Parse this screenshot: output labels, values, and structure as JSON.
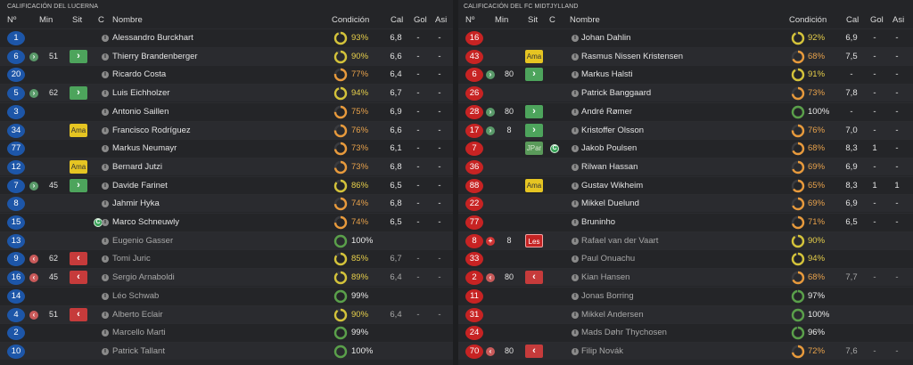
{
  "left": {
    "title": "CALIFICACIÓN DEL LUCERNA",
    "headers": {
      "num": "Nº",
      "min": "Min",
      "sit": "Sit",
      "c": "C",
      "name": "Nombre",
      "cond": "Condición",
      "cal": "Cal",
      "gol": "Gol",
      "asi": "Asi"
    },
    "rows": [
      {
        "num": "1",
        "name": "Alessandro Burckhart",
        "pct": "93%",
        "cal": "6,8",
        "gol": "-",
        "asi": "-",
        "sub": false,
        "in": "",
        "min": "",
        "sit": "",
        "cap": false
      },
      {
        "num": "6",
        "name": "Thierry Brandenberger",
        "pct": "90%",
        "cal": "6,6",
        "gol": "-",
        "asi": "-",
        "sub": false,
        "in": "on",
        "min": "51",
        "sit": "on",
        "cap": false
      },
      {
        "num": "20",
        "name": "Ricardo Costa",
        "pct": "77%",
        "cal": "6,4",
        "gol": "-",
        "asi": "-",
        "sub": false,
        "in": "",
        "min": "",
        "sit": "",
        "cap": false
      },
      {
        "num": "5",
        "name": "Luis Eichholzer",
        "pct": "94%",
        "cal": "6,7",
        "gol": "-",
        "asi": "-",
        "sub": false,
        "in": "on",
        "min": "62",
        "sit": "on",
        "cap": false
      },
      {
        "num": "3",
        "name": "Antonio Saillen",
        "pct": "75%",
        "cal": "6,9",
        "gol": "-",
        "asi": "-",
        "sub": false,
        "in": "",
        "min": "",
        "sit": "",
        "cap": false
      },
      {
        "num": "34",
        "name": "Francisco Rodríguez",
        "pct": "76%",
        "cal": "6,6",
        "gol": "-",
        "asi": "-",
        "sub": false,
        "in": "",
        "min": "",
        "sit": "ama",
        "cap": false
      },
      {
        "num": "77",
        "name": "Markus Neumayr",
        "pct": "73%",
        "cal": "6,1",
        "gol": "-",
        "asi": "-",
        "sub": false,
        "in": "",
        "min": "",
        "sit": "",
        "cap": false
      },
      {
        "num": "12",
        "name": "Bernard Jutzi",
        "pct": "73%",
        "cal": "6,8",
        "gol": "-",
        "asi": "-",
        "sub": false,
        "in": "",
        "min": "",
        "sit": "ama",
        "cap": false
      },
      {
        "num": "7",
        "name": "Davide Farinet",
        "pct": "86%",
        "cal": "6,5",
        "gol": "-",
        "asi": "-",
        "sub": false,
        "in": "on",
        "min": "45",
        "sit": "on",
        "cap": false
      },
      {
        "num": "8",
        "name": "Jahmir Hyka",
        "pct": "74%",
        "cal": "6,8",
        "gol": "-",
        "asi": "-",
        "sub": false,
        "in": "",
        "min": "",
        "sit": "",
        "cap": false
      },
      {
        "num": "15",
        "name": "Marco Schneuwly",
        "pct": "74%",
        "cal": "6,5",
        "gol": "-",
        "asi": "-",
        "sub": false,
        "in": "",
        "min": "",
        "sit": "",
        "cap": true
      },
      {
        "num": "13",
        "name": "Eugenio Gasser",
        "pct": "100%",
        "cal": "",
        "gol": "",
        "asi": "",
        "sub": true,
        "in": "",
        "min": "",
        "sit": "",
        "cap": false
      },
      {
        "num": "9",
        "name": "Tomi Juric",
        "pct": "85%",
        "cal": "6,7",
        "gol": "-",
        "asi": "-",
        "sub": true,
        "in": "off",
        "min": "62",
        "sit": "off",
        "cap": false
      },
      {
        "num": "16",
        "name": "Sergio Arnaboldi",
        "pct": "89%",
        "cal": "6,4",
        "gol": "-",
        "asi": "-",
        "sub": true,
        "in": "off",
        "min": "45",
        "sit": "off",
        "cap": false
      },
      {
        "num": "14",
        "name": "Léo Schwab",
        "pct": "99%",
        "cal": "",
        "gol": "",
        "asi": "",
        "sub": true,
        "in": "",
        "min": "",
        "sit": "",
        "cap": false
      },
      {
        "num": "4",
        "name": "Alberto Eclair",
        "pct": "90%",
        "cal": "6,4",
        "gol": "-",
        "asi": "-",
        "sub": true,
        "in": "off",
        "min": "51",
        "sit": "off",
        "cap": false
      },
      {
        "num": "2",
        "name": "Marcello Marti",
        "pct": "99%",
        "cal": "",
        "gol": "",
        "asi": "",
        "sub": true,
        "in": "",
        "min": "",
        "sit": "",
        "cap": false
      },
      {
        "num": "10",
        "name": "Patrick Tallant",
        "pct": "100%",
        "cal": "",
        "gol": "",
        "asi": "",
        "sub": true,
        "in": "",
        "min": "",
        "sit": "",
        "cap": false
      }
    ]
  },
  "right": {
    "title": "CALIFICACIÓN DEL FC MIDTJYLLAND",
    "headers": {
      "num": "Nº",
      "min": "Min",
      "sit": "Sit",
      "c": "C",
      "name": "Nombre",
      "cond": "Condición",
      "cal": "Cal",
      "gol": "Gol",
      "asi": "Asi"
    },
    "rows": [
      {
        "num": "16",
        "name": "Johan Dahlin",
        "pct": "92%",
        "cal": "6,9",
        "gol": "-",
        "asi": "-",
        "sub": false,
        "in": "",
        "min": "",
        "sit": "",
        "cap": false
      },
      {
        "num": "43",
        "name": "Rasmus Nissen Kristensen",
        "pct": "68%",
        "cal": "7,5",
        "gol": "-",
        "asi": "-",
        "sub": false,
        "in": "",
        "min": "",
        "sit": "ama",
        "cap": false
      },
      {
        "num": "6",
        "name": "Markus Halsti",
        "pct": "91%",
        "cal": "-",
        "gol": "-",
        "asi": "-",
        "sub": false,
        "in": "on",
        "min": "80",
        "sit": "on",
        "cap": false
      },
      {
        "num": "26",
        "name": "Patrick Banggaard",
        "pct": "73%",
        "cal": "7,8",
        "gol": "-",
        "asi": "-",
        "sub": false,
        "in": "",
        "min": "",
        "sit": "",
        "cap": false
      },
      {
        "num": "28",
        "name": "André Rømer",
        "pct": "100%",
        "cal": "-",
        "gol": "-",
        "asi": "-",
        "sub": false,
        "in": "on",
        "min": "80",
        "sit": "on",
        "cap": false
      },
      {
        "num": "17",
        "name": "Kristoffer Olsson",
        "pct": "76%",
        "cal": "7,0",
        "gol": "-",
        "asi": "-",
        "sub": false,
        "in": "on",
        "min": "8",
        "sit": "on",
        "cap": false
      },
      {
        "num": "7",
        "name": "Jakob Poulsen",
        "pct": "68%",
        "cal": "8,3",
        "gol": "1",
        "asi": "-",
        "sub": false,
        "in": "",
        "min": "",
        "sit": "jpar",
        "cap": true
      },
      {
        "num": "36",
        "name": "Rilwan Hassan",
        "pct": "69%",
        "cal": "6,9",
        "gol": "-",
        "asi": "-",
        "sub": false,
        "in": "",
        "min": "",
        "sit": "",
        "cap": false
      },
      {
        "num": "88",
        "name": "Gustav Wikheim",
        "pct": "65%",
        "cal": "8,3",
        "gol": "1",
        "asi": "1",
        "sub": false,
        "in": "",
        "min": "",
        "sit": "ama",
        "cap": false
      },
      {
        "num": "22",
        "name": "Mikkel Duelund",
        "pct": "69%",
        "cal": "6,9",
        "gol": "-",
        "asi": "-",
        "sub": false,
        "in": "",
        "min": "",
        "sit": "",
        "cap": false
      },
      {
        "num": "77",
        "name": "Bruninho",
        "pct": "71%",
        "cal": "6,5",
        "gol": "-",
        "asi": "-",
        "sub": false,
        "in": "",
        "min": "",
        "sit": "",
        "cap": false
      },
      {
        "num": "8",
        "name": "Rafael van der Vaart",
        "pct": "90%",
        "cal": "",
        "gol": "",
        "asi": "",
        "sub": true,
        "in": "inj",
        "min": "8",
        "sit": "les",
        "cap": false
      },
      {
        "num": "33",
        "name": "Paul Onuachu",
        "pct": "94%",
        "cal": "",
        "gol": "",
        "asi": "",
        "sub": true,
        "in": "",
        "min": "",
        "sit": "",
        "cap": false
      },
      {
        "num": "2",
        "name": "Kian Hansen",
        "pct": "68%",
        "cal": "7,7",
        "gol": "-",
        "asi": "-",
        "sub": true,
        "in": "off",
        "min": "80",
        "sit": "off",
        "cap": false
      },
      {
        "num": "11",
        "name": "Jonas Borring",
        "pct": "97%",
        "cal": "",
        "gol": "",
        "asi": "",
        "sub": true,
        "in": "",
        "min": "",
        "sit": "",
        "cap": false
      },
      {
        "num": "31",
        "name": "Mikkel Andersen",
        "pct": "100%",
        "cal": "",
        "gol": "",
        "asi": "",
        "sub": true,
        "in": "",
        "min": "",
        "sit": "",
        "cap": false
      },
      {
        "num": "24",
        "name": "Mads Døhr Thychosen",
        "pct": "96%",
        "cal": "",
        "gol": "",
        "asi": "",
        "sub": true,
        "in": "",
        "min": "",
        "sit": "",
        "cap": false
      },
      {
        "num": "70",
        "name": "Filip Novák",
        "pct": "72%",
        "cal": "7,6",
        "gol": "-",
        "asi": "-",
        "sub": true,
        "in": "off",
        "min": "80",
        "sit": "off",
        "cap": false
      }
    ]
  },
  "labels": {
    "ama": "Ama",
    "jpar": "JPar",
    "les": "Les",
    "on": "›",
    "off": "‹",
    "cap": "C",
    "info": "i",
    "inj": "+"
  },
  "colors": {
    "left_badge": "#1d56a8",
    "right_badge": "#c72323",
    "cond_green": "#5aa04a",
    "cond_yellow": "#d4c33a",
    "cond_orange": "#e89a3c"
  }
}
